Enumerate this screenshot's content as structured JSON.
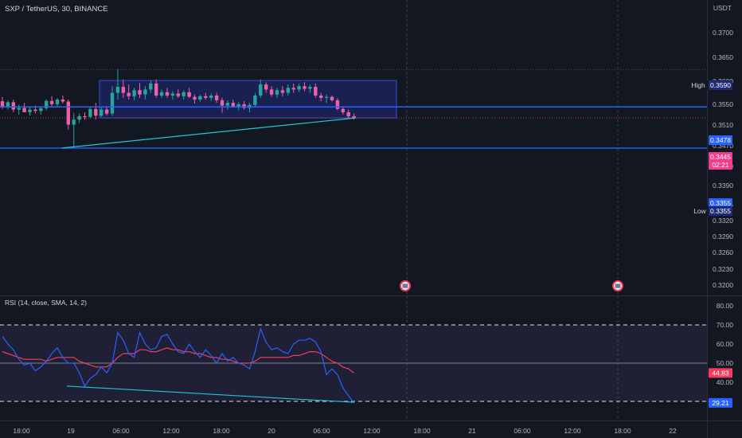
{
  "header": {
    "title": "SXP / TetherUS, 30, BINANCE",
    "currency": "USDT"
  },
  "price_axis": {
    "ticks": [
      "0.3700",
      "0.3650",
      "0.3600",
      "0.3550",
      "0.3510",
      "0.3470",
      "0.3430",
      "0.3390",
      "0.3355",
      "0.3320",
      "0.3290",
      "0.3260",
      "0.3230",
      "0.3200"
    ]
  },
  "price_labels": {
    "high_tag": "High",
    "high_value": "0.3590",
    "hline_value": "0.3478",
    "last_price": "0.3445",
    "countdown": "02:21",
    "hline2_value": "0.3355",
    "low_tag": "Low",
    "low_value": "0.3355"
  },
  "rsi": {
    "title": "RSI (14, close, SMA, 14, 2)",
    "ticks": [
      "80.00",
      "70.00",
      "60.00",
      "50.00",
      "40.00",
      "30.00"
    ],
    "sma_value": "44.83",
    "rsi_value": "29.21"
  },
  "time_axis": {
    "labels": [
      "18:00",
      "19",
      "06:00",
      "12:00",
      "18:00",
      "20",
      "06:00",
      "12:00",
      "18:00",
      "21",
      "06:00",
      "12:00",
      "18:00",
      "22"
    ]
  },
  "colors": {
    "background": "#131722",
    "up": "#26a69a",
    "down": "#ef5fa8",
    "hline": "#2962ff",
    "trendline": "#22c6d8",
    "rsi_line": "#2962ff",
    "rsi_sma": "#f23d5c",
    "rect_fill": "#1e2a78"
  },
  "chart_data": {
    "type": "candlestick",
    "symbol": "SXP / TetherUS",
    "interval": "30",
    "exchange": "BINANCE",
    "y_range": [
      0.3195,
      0.372
    ],
    "candles": [
      [
        0.3495,
        0.3508,
        0.3472,
        0.348
      ],
      [
        0.348,
        0.3498,
        0.347,
        0.3492
      ],
      [
        0.3492,
        0.35,
        0.3462,
        0.347
      ],
      [
        0.347,
        0.3484,
        0.3455,
        0.3475
      ],
      [
        0.3475,
        0.349,
        0.3466,
        0.3462
      ],
      [
        0.3462,
        0.3478,
        0.3452,
        0.347
      ],
      [
        0.347,
        0.3482,
        0.3458,
        0.3466
      ],
      [
        0.3466,
        0.348,
        0.3455,
        0.3474
      ],
      [
        0.3474,
        0.35,
        0.3468,
        0.3496
      ],
      [
        0.3496,
        0.351,
        0.348,
        0.3486
      ],
      [
        0.3486,
        0.3505,
        0.3478,
        0.35
      ],
      [
        0.35,
        0.3512,
        0.3488,
        0.3494
      ],
      [
        0.3494,
        0.35,
        0.341,
        0.3425
      ],
      [
        0.3425,
        0.346,
        0.3355,
        0.344
      ],
      [
        0.344,
        0.3458,
        0.343,
        0.345
      ],
      [
        0.345,
        0.3462,
        0.344,
        0.3448
      ],
      [
        0.3448,
        0.3478,
        0.3445,
        0.3472
      ],
      [
        0.3472,
        0.349,
        0.344,
        0.3452
      ],
      [
        0.3452,
        0.3478,
        0.3448,
        0.347
      ],
      [
        0.347,
        0.348,
        0.3452,
        0.3458
      ],
      [
        0.3458,
        0.354,
        0.3452,
        0.352
      ],
      [
        0.352,
        0.359,
        0.35,
        0.3538
      ],
      [
        0.3538,
        0.356,
        0.3505,
        0.352
      ],
      [
        0.352,
        0.3545,
        0.35,
        0.351
      ],
      [
        0.351,
        0.3535,
        0.3498,
        0.3528
      ],
      [
        0.3528,
        0.355,
        0.3505,
        0.3515
      ],
      [
        0.3515,
        0.354,
        0.35,
        0.353
      ],
      [
        0.353,
        0.3558,
        0.352,
        0.3548
      ],
      [
        0.3548,
        0.356,
        0.3505,
        0.3512
      ],
      [
        0.3512,
        0.353,
        0.3505,
        0.3522
      ],
      [
        0.3522,
        0.3535,
        0.3505,
        0.3512
      ],
      [
        0.3512,
        0.3525,
        0.35,
        0.3518
      ],
      [
        0.3518,
        0.353,
        0.3505,
        0.351
      ],
      [
        0.351,
        0.3528,
        0.35,
        0.3522
      ],
      [
        0.3522,
        0.3535,
        0.3505,
        0.3508
      ],
      [
        0.3508,
        0.3515,
        0.3488,
        0.35
      ],
      [
        0.35,
        0.3515,
        0.3494,
        0.351
      ],
      [
        0.351,
        0.352,
        0.35,
        0.3505
      ],
      [
        0.3505,
        0.3518,
        0.3496,
        0.3512
      ],
      [
        0.3512,
        0.352,
        0.349,
        0.3498
      ],
      [
        0.3498,
        0.3506,
        0.346,
        0.3482
      ],
      [
        0.3482,
        0.3498,
        0.347,
        0.349
      ],
      [
        0.349,
        0.35,
        0.3476,
        0.348
      ],
      [
        0.348,
        0.3492,
        0.3468,
        0.3486
      ],
      [
        0.3486,
        0.3495,
        0.347,
        0.3475
      ],
      [
        0.3475,
        0.349,
        0.3462,
        0.3484
      ],
      [
        0.3484,
        0.352,
        0.3478,
        0.3512
      ],
      [
        0.3512,
        0.356,
        0.3505,
        0.3545
      ],
      [
        0.3545,
        0.3552,
        0.352,
        0.353
      ],
      [
        0.353,
        0.354,
        0.3508,
        0.3515
      ],
      [
        0.3515,
        0.3535,
        0.3505,
        0.3528
      ],
      [
        0.3528,
        0.354,
        0.351,
        0.352
      ],
      [
        0.352,
        0.3545,
        0.3512,
        0.3535
      ],
      [
        0.3535,
        0.3548,
        0.352,
        0.353
      ],
      [
        0.353,
        0.3548,
        0.3522,
        0.354
      ],
      [
        0.354,
        0.3552,
        0.3525,
        0.3532
      ],
      [
        0.3532,
        0.3545,
        0.352,
        0.3538
      ],
      [
        0.3538,
        0.3548,
        0.3505,
        0.3512
      ],
      [
        0.3512,
        0.352,
        0.3495,
        0.3505
      ],
      [
        0.3505,
        0.3515,
        0.349,
        0.3508
      ],
      [
        0.3508,
        0.3512,
        0.3494,
        0.3498
      ],
      [
        0.3498,
        0.3504,
        0.3468,
        0.3472
      ],
      [
        0.3472,
        0.348,
        0.3455,
        0.3462
      ],
      [
        0.3462,
        0.347,
        0.3445,
        0.345
      ],
      [
        0.345,
        0.3458,
        0.344,
        0.3445
      ]
    ],
    "price_levels": {
      "high": 0.359,
      "hline": 0.3478,
      "last": 0.3445,
      "low": 0.3355
    },
    "rectangle": {
      "price_top": 0.3557,
      "price_bottom": 0.3445,
      "start_index": 20,
      "end_index": 78
    },
    "trendline": {
      "start": {
        "index": 13,
        "price": 0.3355
      },
      "end": {
        "index": 64,
        "price": 0.3445
      }
    },
    "rsi": {
      "y_range": [
        25,
        85
      ],
      "overbought": 70,
      "middle": 50,
      "oversold": 30,
      "values": [
        64,
        60,
        57,
        52,
        49,
        50,
        46,
        48,
        51,
        55,
        58,
        53,
        50,
        50,
        45,
        38,
        42,
        44,
        48,
        45,
        50,
        66,
        62,
        55,
        53,
        66,
        60,
        57,
        58,
        64,
        65,
        60,
        56,
        55,
        60,
        56,
        53,
        57,
        54,
        50,
        55,
        51,
        53,
        50,
        49,
        47,
        56,
        68,
        61,
        57,
        58,
        56,
        55,
        60,
        62,
        62,
        63,
        61,
        56,
        44,
        47,
        44,
        37,
        33,
        29.21
      ],
      "sma": [
        56,
        55,
        54,
        53,
        52,
        52,
        52,
        52,
        51,
        52,
        53,
        53,
        53,
        53,
        51,
        50,
        49,
        48,
        48,
        48,
        50,
        53,
        55,
        55,
        55,
        57,
        57,
        56,
        56,
        57,
        58,
        57,
        57,
        56,
        56,
        55,
        55,
        54,
        53,
        53,
        52,
        52,
        51,
        50,
        50,
        50,
        51,
        53,
        53,
        53,
        53,
        53,
        53,
        54,
        54,
        55,
        56,
        56,
        55,
        53,
        51,
        50,
        48,
        47,
        44.83
      ]
    },
    "x_labels": [
      "18:00",
      "19",
      "06:00",
      "12:00",
      "18:00",
      "20",
      "06:00",
      "12:00",
      "18:00",
      "21",
      "06:00",
      "12:00",
      "18:00",
      "22"
    ]
  }
}
